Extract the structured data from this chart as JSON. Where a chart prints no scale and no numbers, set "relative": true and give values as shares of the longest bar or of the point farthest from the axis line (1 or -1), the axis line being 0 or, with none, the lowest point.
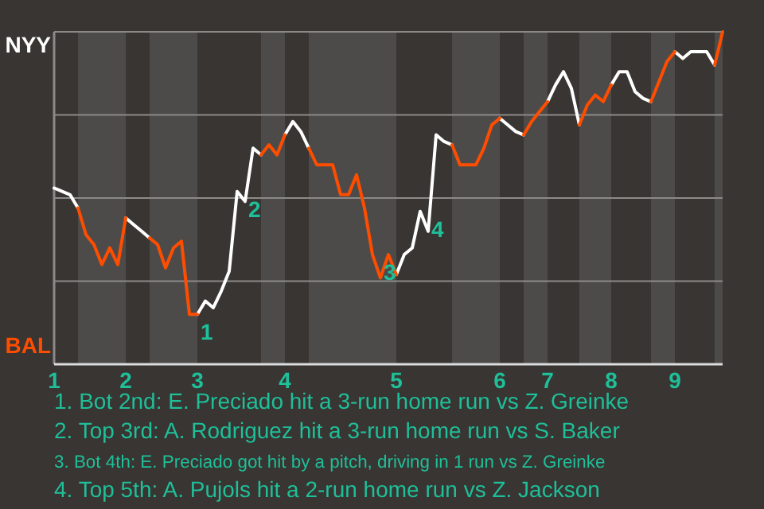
{
  "chart_data": {
    "type": "line",
    "relative": true,
    "categories": [
      "1",
      null,
      null,
      null,
      null,
      null,
      null,
      null,
      null,
      "2",
      null,
      null,
      null,
      null,
      null,
      null,
      null,
      null,
      "3",
      null,
      null,
      null,
      null,
      null,
      null,
      null,
      null,
      null,
      null,
      "4",
      null,
      null,
      null,
      null,
      null,
      null,
      null,
      null,
      null,
      null,
      null,
      null,
      null,
      "5",
      null,
      null,
      null,
      null,
      null,
      null,
      null,
      null,
      null,
      null,
      null,
      null,
      "6",
      null,
      null,
      null,
      null,
      null,
      "7",
      null,
      null,
      null,
      null,
      null,
      null,
      null,
      "8",
      null,
      null,
      null,
      null,
      null,
      null,
      null,
      "9",
      null,
      null,
      null,
      null,
      null,
      null
    ],
    "series": [
      {
        "name": "NYY",
        "color": "#ffffff",
        "values": [
          0.53,
          0.52,
          0.51,
          0.47,
          null,
          null,
          null,
          null,
          null,
          0.44,
          0.42,
          0.4,
          0.38,
          null,
          null,
          null,
          null,
          null,
          0.15,
          0.19,
          0.17,
          0.22,
          0.28,
          0.52,
          0.49,
          0.65,
          0.63,
          null,
          null,
          0.69,
          0.73,
          0.7,
          0.65,
          null,
          null,
          null,
          null,
          null,
          null,
          null,
          null,
          null,
          null,
          0.27,
          0.33,
          0.35,
          0.46,
          0.4,
          0.69,
          0.67,
          0.66,
          null,
          null,
          null,
          null,
          null,
          0.74,
          0.72,
          0.7,
          0.69,
          null,
          null,
          0.79,
          0.84,
          0.88,
          0.83,
          0.72,
          null,
          null,
          null,
          0.84,
          0.88,
          0.88,
          0.82,
          0.8,
          0.79,
          null,
          null,
          0.94,
          0.92,
          0.94,
          0.94,
          0.94,
          0.9,
          null
        ]
      },
      {
        "name": "BAL",
        "color": "#ff4d00",
        "values": [
          null,
          null,
          null,
          0.47,
          0.39,
          0.36,
          0.3,
          0.35,
          0.3,
          0.44,
          null,
          null,
          0.38,
          0.36,
          0.29,
          0.35,
          0.37,
          0.15,
          0.15,
          null,
          null,
          null,
          null,
          null,
          null,
          null,
          0.63,
          0.66,
          0.63,
          0.69,
          null,
          null,
          0.65,
          0.6,
          0.6,
          0.6,
          0.51,
          0.51,
          0.57,
          0.47,
          0.33,
          0.26,
          0.33,
          0.27,
          null,
          null,
          null,
          null,
          null,
          null,
          0.66,
          0.6,
          0.6,
          0.6,
          0.65,
          0.72,
          0.74,
          null,
          null,
          0.69,
          0.73,
          0.76,
          0.79,
          null,
          null,
          null,
          0.72,
          0.78,
          0.81,
          0.79,
          0.84,
          null,
          null,
          null,
          null,
          0.79,
          0.85,
          0.91,
          0.94,
          null,
          null,
          null,
          null,
          0.9,
          1
        ]
      }
    ],
    "grid": "y",
    "legend": "left",
    "annotations": [
      {
        "text": "1",
        "y": 0.15
      },
      {
        "text": "2",
        "y": 0.52
      },
      {
        "text": "3",
        "y": 0.33
      },
      {
        "text": "4",
        "y": 0.46
      },
      "1. Bot 2nd: E. Preciado hit a 3-run home run vs Z. Greinke",
      "2. Top 3rd: A. Rodriguez hit a 3-run home run vs S. Baker",
      "3. Bot 4th: E. Preciado got hit by a pitch, driving in 1 run vs Z. Greinke",
      "4. Top 5th: A. Pujols hit a 2-run home run vs Z. Jackson"
    ]
  }
}
